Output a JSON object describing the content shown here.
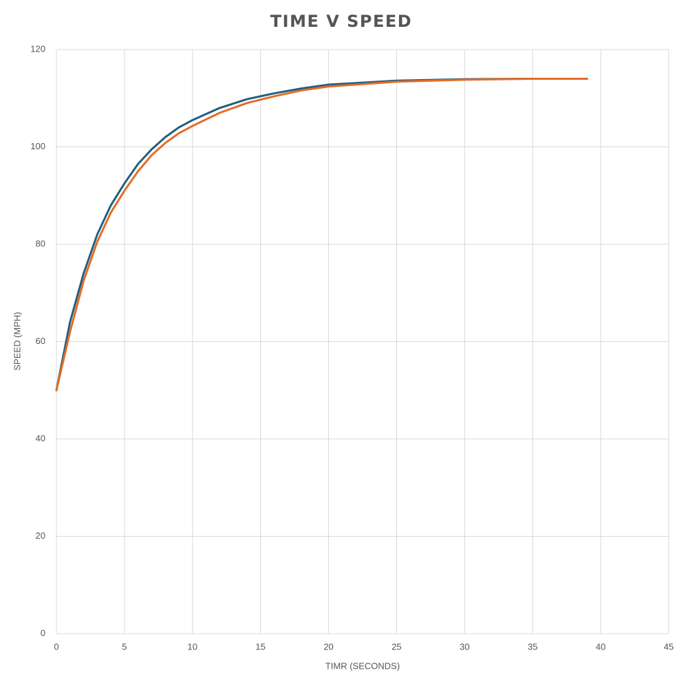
{
  "chart_data": {
    "type": "line",
    "title": "TIME V SPEED",
    "x_label": "TIMR (SECONDS)",
    "y_label": "SPEED (MPH)",
    "x": [
      0,
      1,
      2,
      3,
      4,
      5,
      6,
      7,
      8,
      9,
      10,
      12,
      14,
      16,
      18,
      20,
      25,
      30,
      35,
      39
    ],
    "series": [
      {
        "color": "#215f7e",
        "values": [
          50,
          64,
          74,
          82,
          88,
          92.5,
          96.5,
          99.5,
          102,
          104,
          105.5,
          108,
          109.8,
          111,
          112,
          112.8,
          113.6,
          113.9,
          114,
          114
        ]
      },
      {
        "color": "#e46c26",
        "values": [
          50,
          62,
          72.5,
          80.5,
          86.5,
          91,
          95,
          98.3,
          100.8,
          102.8,
          104.3,
          107,
          109,
          110.4,
          111.6,
          112.4,
          113.4,
          113.8,
          114,
          114
        ]
      }
    ],
    "xlim": [
      0,
      45
    ],
    "xticks": [
      0,
      5,
      10,
      15,
      20,
      25,
      30,
      35,
      40,
      45
    ],
    "ylim": [
      0,
      120
    ],
    "yticks": [
      0,
      20,
      40,
      60,
      80,
      100,
      120
    ],
    "grid": true
  }
}
